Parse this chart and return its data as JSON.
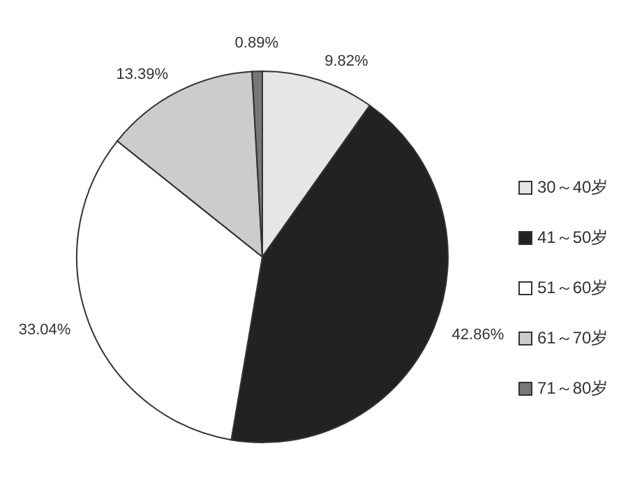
{
  "chart_data": {
    "type": "pie",
    "categories": [
      "30～40岁",
      "41～50岁",
      "51～60岁",
      "61～70岁",
      "71～80岁"
    ],
    "values": [
      9.82,
      42.86,
      33.04,
      13.39,
      0.89
    ],
    "value_labels": [
      "9.82%",
      "42.86%",
      "33.04%",
      "13.39%",
      "0.89%"
    ],
    "colors": [
      "#e6e6e6",
      "#222222",
      "#ffffff",
      "#cccccc",
      "#777777"
    ],
    "legend": "right"
  }
}
